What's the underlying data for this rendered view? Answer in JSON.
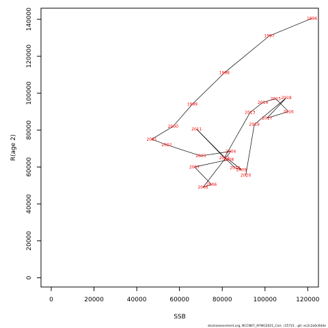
{
  "chart_data": {
    "type": "line",
    "title": "",
    "xlabel": "SSB",
    "ylabel": "R(age 2)",
    "xlim": [
      -4800,
      125000
    ],
    "ylim": [
      -5000,
      146000
    ],
    "x_ticks": [
      0,
      20000,
      40000,
      60000,
      80000,
      100000,
      120000
    ],
    "y_ticks": [
      0,
      20000,
      40000,
      60000,
      80000,
      100000,
      120000,
      140000
    ],
    "grid": false,
    "series": [
      {
        "points": [
          {
            "label": "1996",
            "x": 122000,
            "y": 140500
          },
          {
            "label": "1997",
            "x": 102000,
            "y": 131000
          },
          {
            "label": "1998",
            "x": 81000,
            "y": 111000
          },
          {
            "label": "1999",
            "x": 66000,
            "y": 94000
          },
          {
            "label": "2000",
            "x": 57000,
            "y": 82000
          },
          {
            "label": "2001",
            "x": 47000,
            "y": 75000
          },
          {
            "label": "2002",
            "x": 54000,
            "y": 72000
          },
          {
            "label": "2003",
            "x": 70000,
            "y": 66000
          },
          {
            "label": "2004",
            "x": 84000,
            "y": 68500
          },
          {
            "label": "2005",
            "x": 71000,
            "y": 49000
          },
          {
            "label": "2006",
            "x": 75000,
            "y": 50500
          },
          {
            "label": "2007",
            "x": 67000,
            "y": 60000
          },
          {
            "label": "2008",
            "x": 83000,
            "y": 64000
          },
          {
            "label": "2009",
            "x": 89000,
            "y": 58500
          },
          {
            "label": "2010",
            "x": 86000,
            "y": 59500
          },
          {
            "label": "2011",
            "x": 68000,
            "y": 80500
          },
          {
            "label": "2012",
            "x": 81000,
            "y": 65000
          },
          {
            "label": "2013",
            "x": 93000,
            "y": 89500
          },
          {
            "label": "2014",
            "x": 99000,
            "y": 95000
          },
          {
            "label": "2015",
            "x": 105000,
            "y": 97000
          },
          {
            "label": "2016",
            "x": 111000,
            "y": 90000
          },
          {
            "label": "2017",
            "x": 101000,
            "y": 86500
          },
          {
            "label": "2018",
            "x": 110000,
            "y": 97500
          },
          {
            "label": "2019",
            "x": 95000,
            "y": 83000
          },
          {
            "label": "2020",
            "x": 91000,
            "y": 55500
          }
        ]
      }
    ]
  },
  "footer": "stockassessment.org, NCCN67_AFWG2021_Corr, r15721 , git: ec2c2a0c6dde"
}
